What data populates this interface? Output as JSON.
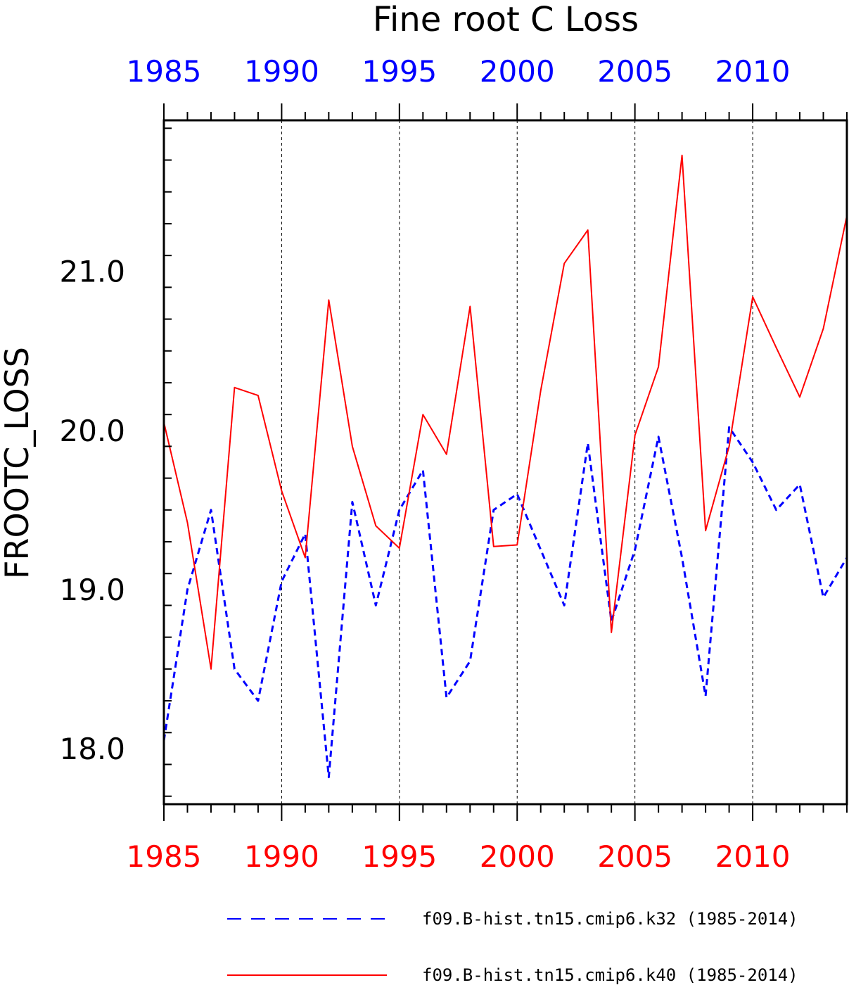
{
  "chart_data": {
    "type": "line",
    "title": "Fine root C Loss",
    "ylabel": "FROOTC_LOSS",
    "xlabel": "",
    "xlim": [
      1985,
      2014
    ],
    "ylim": [
      17.65,
      21.95
    ],
    "x": [
      1985,
      1986,
      1987,
      1988,
      1989,
      1990,
      1991,
      1992,
      1993,
      1994,
      1995,
      1996,
      1997,
      1998,
      1999,
      2000,
      2001,
      2002,
      2003,
      2004,
      2005,
      2006,
      2007,
      2008,
      2009,
      2010,
      2011,
      2012,
      2013,
      2014
    ],
    "x_ticks": [
      1985,
      1990,
      1995,
      2000,
      2005,
      2010
    ],
    "x_tick_labels": [
      "1985",
      "1990",
      "1995",
      "2000",
      "2005",
      "2010"
    ],
    "y_ticks": [
      18.0,
      19.0,
      20.0,
      21.0
    ],
    "y_tick_labels": [
      "18.0",
      "19.0",
      "20.0",
      "21.0"
    ],
    "vertical_grid": true,
    "bottom_axis_color": "#ff0000",
    "top_axis_color": "#0000ff",
    "series": [
      {
        "name": "f09.B-hist.tn15.cmip6.k32 (1985-2014)",
        "color": "#0000ff",
        "style": "dashed",
        "values": [
          18.05,
          19.0,
          19.5,
          18.5,
          18.3,
          19.05,
          19.35,
          17.82,
          19.55,
          18.9,
          19.5,
          19.75,
          18.32,
          18.55,
          19.5,
          19.6,
          19.25,
          18.9,
          19.92,
          18.8,
          19.25,
          19.96,
          19.2,
          18.33,
          20.02,
          19.8,
          19.5,
          19.66,
          18.95,
          19.2
        ]
      },
      {
        "name": "f09.B-hist.tn15.cmip6.k40 (1985-2014)",
        "color": "#ff0000",
        "style": "solid",
        "values": [
          20.05,
          19.42,
          18.5,
          20.27,
          20.22,
          19.62,
          19.2,
          20.82,
          19.9,
          19.4,
          19.26,
          20.1,
          19.85,
          20.78,
          19.27,
          19.28,
          20.25,
          21.05,
          21.26,
          18.73,
          19.97,
          20.4,
          21.73,
          19.37,
          19.9,
          20.84,
          20.52,
          20.21,
          20.64,
          21.35
        ]
      }
    ]
  }
}
